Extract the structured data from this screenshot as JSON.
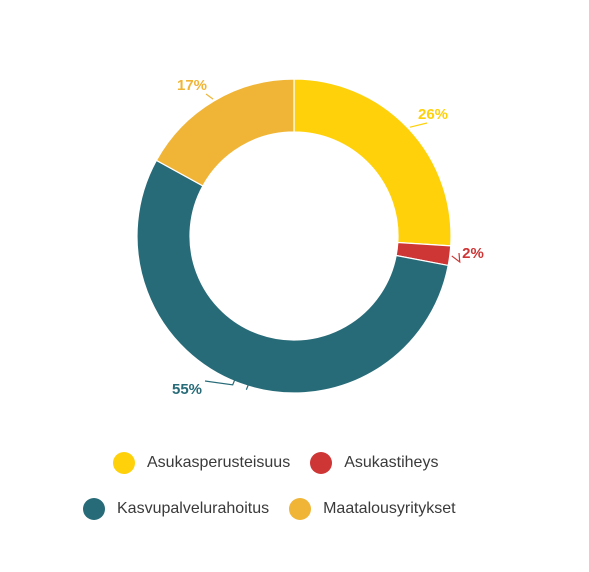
{
  "chart_data": {
    "type": "pie",
    "variant": "donut",
    "legend_position": "bottom",
    "slices": [
      {
        "label": "Asukasperusteisuus",
        "value": 26,
        "value_label": "26%",
        "color": "#FFD10A"
      },
      {
        "label": "Asukastiheys",
        "value": 2,
        "value_label": "2%",
        "color": "#CE3535"
      },
      {
        "label": "Kasvupalvelurahoitus",
        "value": 55,
        "value_label": "55%",
        "color": "#276B78"
      },
      {
        "label": "Maatalousyritykset",
        "value": 17,
        "value_label": "17%",
        "color": "#F0B537"
      }
    ],
    "legend": [
      "Asukasperusteisuus",
      "Asukastiheys",
      "Kasvupalvelurahoitus",
      "Maatalousyritykset"
    ]
  }
}
